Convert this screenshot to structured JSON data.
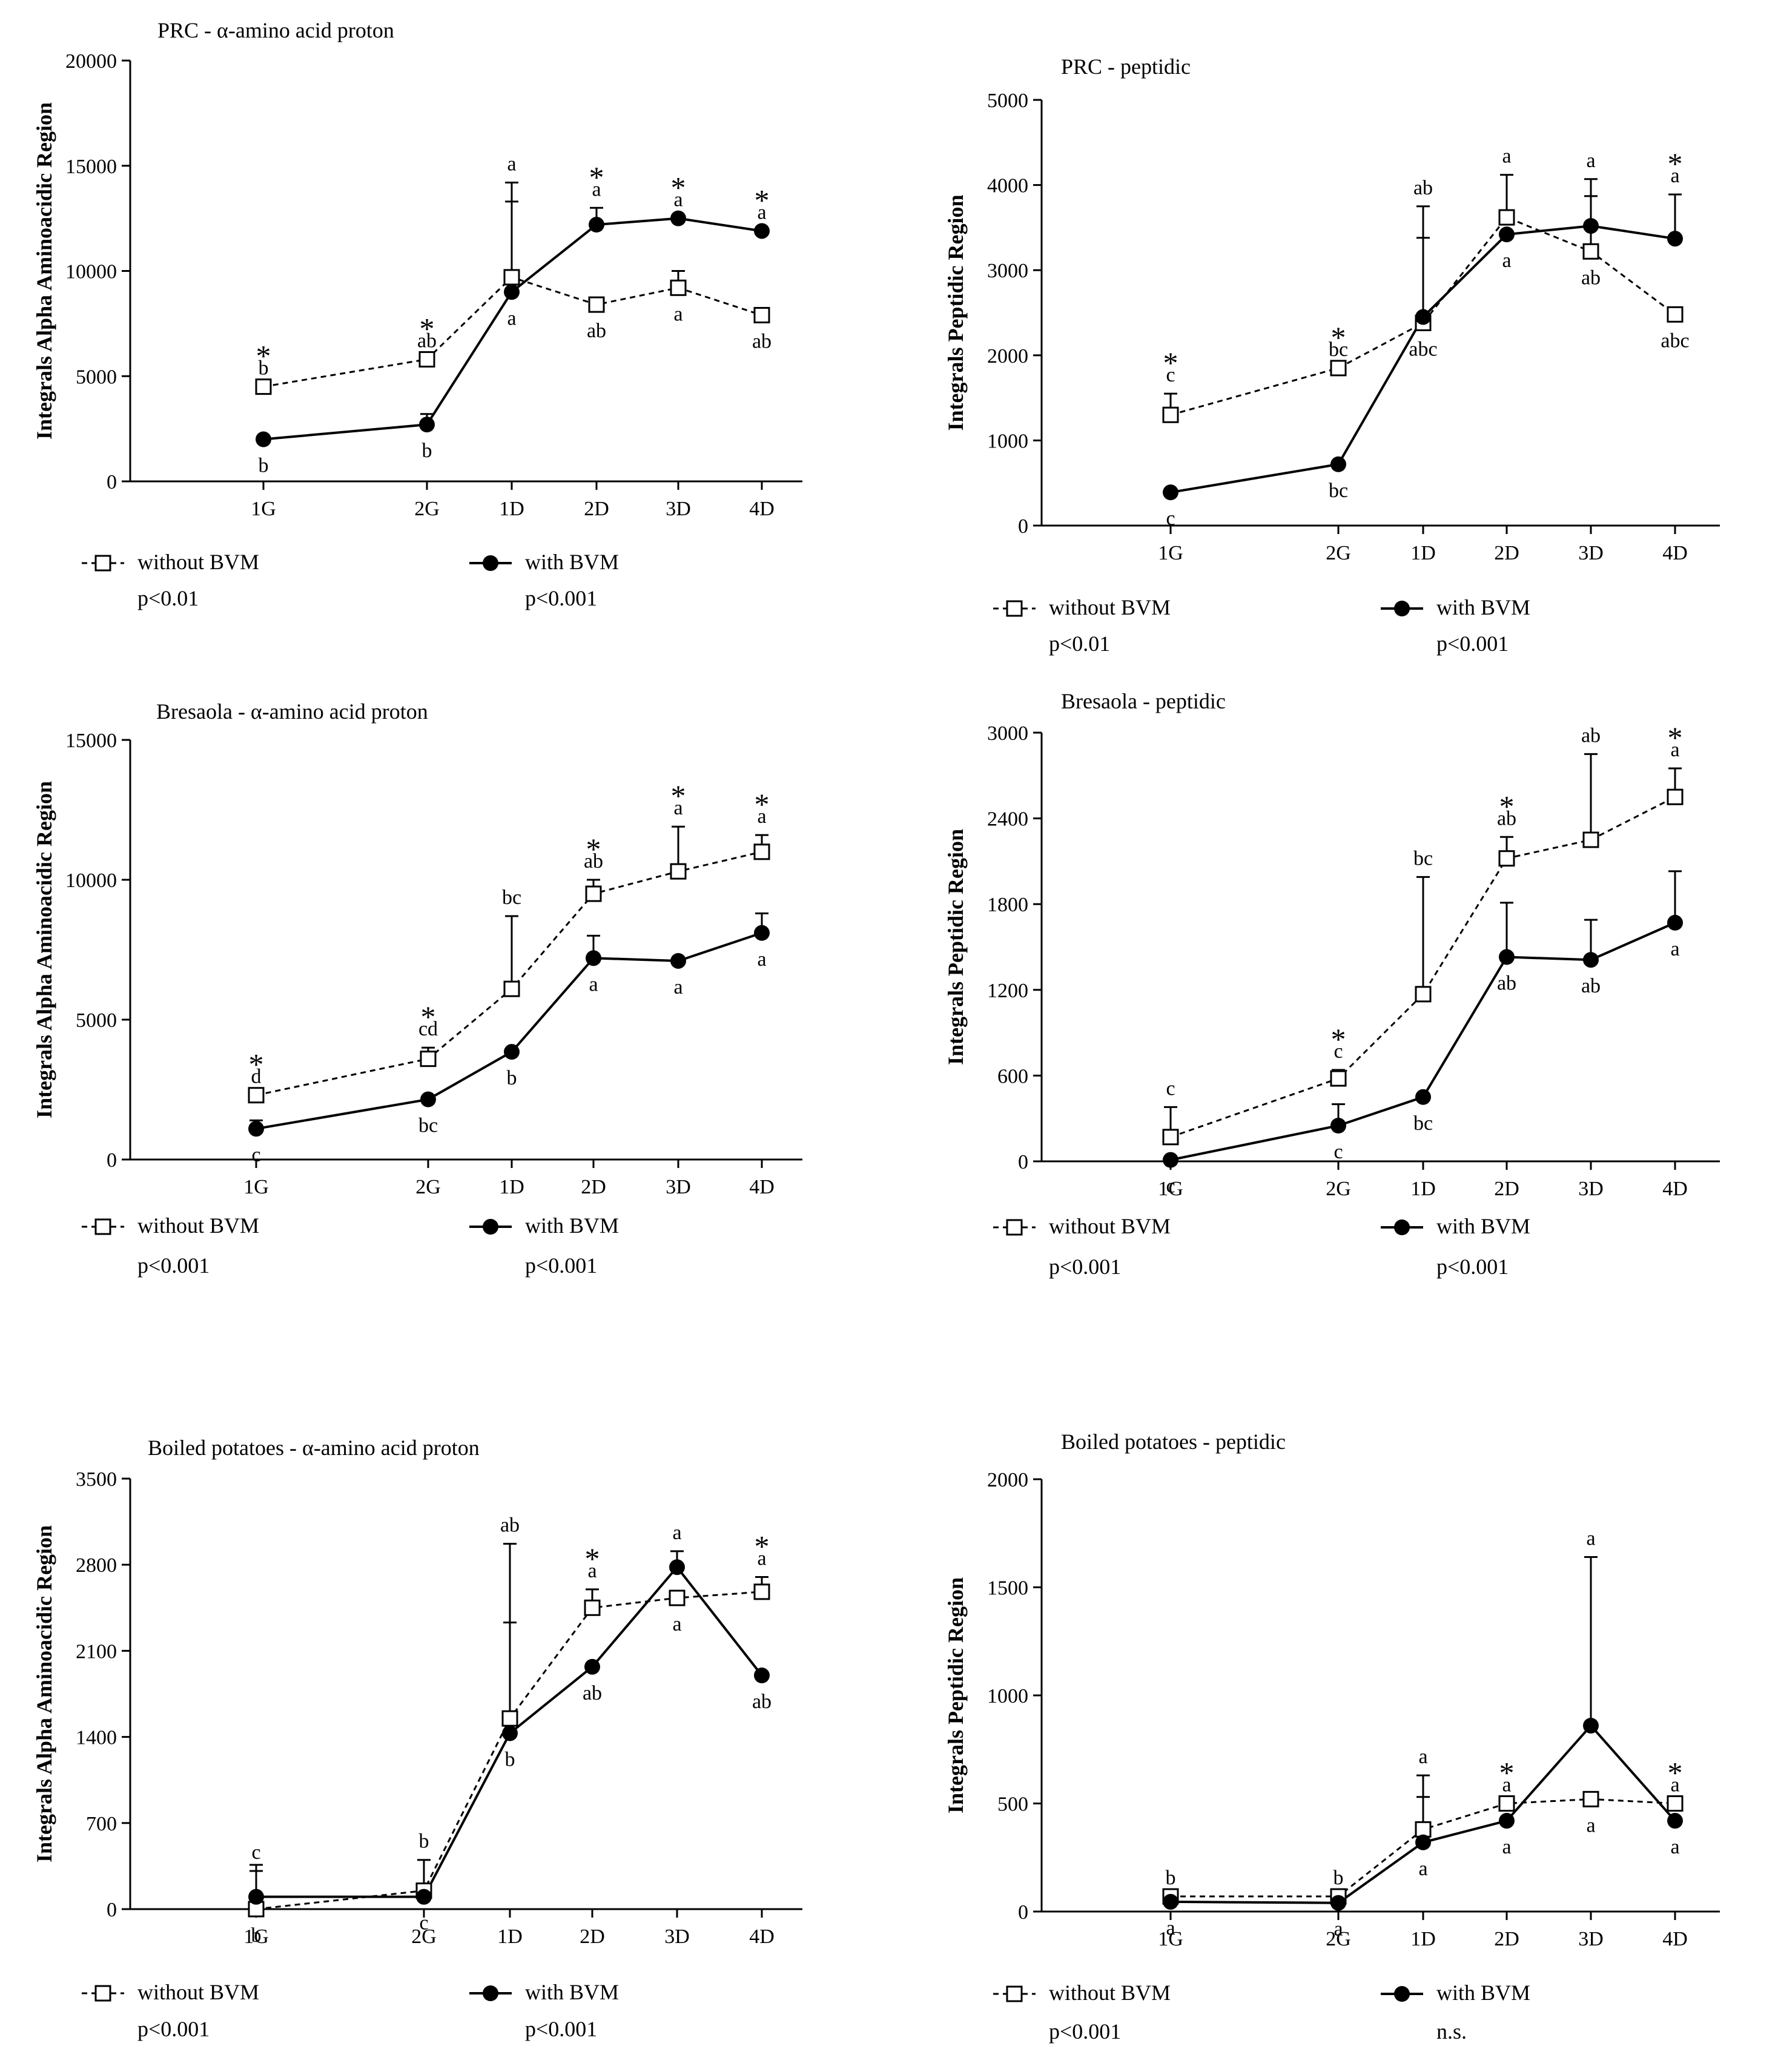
{
  "chart_data": [
    {
      "type": "line",
      "title": "PRC - α-amino acid proton",
      "ylabel": "Integrals Alpha Aminoacidic Region",
      "categories": [
        "1G",
        "2G",
        "1D",
        "2D",
        "3D",
        "4D"
      ],
      "ylim": [
        0,
        20000
      ],
      "yticks": [
        0,
        5000,
        10000,
        15000,
        20000
      ],
      "series": [
        {
          "name": "without BVM",
          "p_value": "p<0.01",
          "values": [
            4500,
            5800,
            9700,
            8400,
            9200,
            7900
          ],
          "errors": [
            null,
            null,
            4500,
            null,
            800,
            null
          ],
          "letters": [
            "b",
            "ab",
            "a",
            "ab",
            "a",
            "ab"
          ]
        },
        {
          "name": "with BVM",
          "p_value": "p<0.001",
          "values": [
            2000,
            2700,
            9000,
            12200,
            12500,
            11900
          ],
          "errors": [
            null,
            500,
            4300,
            800,
            null,
            null
          ],
          "letters": [
            "b",
            "b",
            "a",
            "a",
            "a",
            "a"
          ]
        }
      ],
      "stars": [
        true,
        true,
        false,
        true,
        true,
        true
      ]
    },
    {
      "type": "line",
      "title": "PRC - peptidic",
      "ylabel": "Integrals Peptidic Region",
      "categories": [
        "1G",
        "2G",
        "1D",
        "2D",
        "3D",
        "4D"
      ],
      "ylim": [
        0,
        5000
      ],
      "yticks": [
        0,
        1000,
        2000,
        3000,
        4000,
        5000
      ],
      "series": [
        {
          "name": "without BVM",
          "p_value": "p<0.01",
          "values": [
            1300,
            1850,
            2380,
            3620,
            3220,
            2480
          ],
          "errors": [
            250,
            null,
            1000,
            500,
            650,
            null
          ],
          "letters": [
            "c",
            "bc",
            "abc",
            "a",
            "ab",
            "abc"
          ]
        },
        {
          "name": "with BVM",
          "p_value": "p<0.001",
          "values": [
            390,
            720,
            2450,
            3420,
            3520,
            3370
          ],
          "errors": [
            null,
            null,
            1300,
            null,
            550,
            520
          ],
          "letters": [
            "c",
            "bc",
            "ab",
            "a",
            "a",
            "a"
          ]
        }
      ],
      "stars": [
        true,
        true,
        false,
        false,
        false,
        true
      ]
    },
    {
      "type": "line",
      "title": "Bresaola - α-amino acid proton",
      "ylabel": "Integrals Alpha Aminoacidic Region",
      "categories": [
        "1G",
        "2G",
        "1D",
        "2D",
        "3D",
        "4D"
      ],
      "ylim": [
        0,
        15000
      ],
      "yticks": [
        0,
        5000,
        10000,
        15000
      ],
      "series": [
        {
          "name": "without BVM",
          "p_value": "p<0.001",
          "values": [
            2300,
            3600,
            6100,
            9500,
            10300,
            11000
          ],
          "errors": [
            null,
            400,
            2600,
            500,
            1600,
            600
          ],
          "letters": [
            "d",
            "cd",
            "bc",
            "ab",
            "a",
            "a"
          ]
        },
        {
          "name": "with BVM",
          "p_value": "p<0.001",
          "values": [
            1100,
            2150,
            3850,
            7200,
            7100,
            8100
          ],
          "errors": [
            300,
            null,
            null,
            800,
            null,
            700
          ],
          "letters": [
            "c",
            "bc",
            "b",
            "a",
            "a",
            "a"
          ]
        }
      ],
      "stars": [
        true,
        true,
        false,
        true,
        true,
        true
      ]
    },
    {
      "type": "line",
      "title": "Bresaola - peptidic",
      "ylabel": "Integrals Peptidic Region",
      "categories": [
        "1G",
        "2G",
        "1D",
        "2D",
        "3D",
        "4D"
      ],
      "ylim": [
        0,
        3000
      ],
      "yticks": [
        0,
        600,
        1200,
        1800,
        2400,
        3000
      ],
      "series": [
        {
          "name": "without BVM",
          "p_value": "p<0.001",
          "values": [
            170,
            580,
            1170,
            2120,
            2250,
            2550
          ],
          "errors": [
            210,
            60,
            820,
            150,
            600,
            200
          ],
          "letters": [
            "c",
            "c",
            "bc",
            "ab",
            "ab",
            "a"
          ]
        },
        {
          "name": "with BVM",
          "p_value": "p<0.001",
          "values": [
            10,
            250,
            450,
            1430,
            1410,
            1670
          ],
          "errors": [
            null,
            150,
            null,
            380,
            280,
            360
          ],
          "letters": [
            "c",
            "c",
            "bc",
            "ab",
            "ab",
            "a"
          ]
        }
      ],
      "stars": [
        false,
        true,
        false,
        true,
        false,
        true
      ]
    },
    {
      "type": "line",
      "title": "Boiled potatoes - α-amino acid proton",
      "ylabel": "Integrals Alpha Aminoacidic Region",
      "categories": [
        "1G",
        "2G",
        "1D",
        "2D",
        "3D",
        "4D"
      ],
      "ylim": [
        0,
        3500
      ],
      "yticks": [
        0,
        700,
        1400,
        2100,
        2800,
        3500
      ],
      "series": [
        {
          "name": "without BVM",
          "p_value": "p<0.001",
          "values": [
            0,
            150,
            1550,
            2450,
            2530,
            2580
          ],
          "errors": [
            360,
            250,
            1420,
            150,
            null,
            120
          ],
          "letters": [
            "b",
            "b",
            "ab",
            "a",
            "a",
            "a"
          ]
        },
        {
          "name": "with BVM",
          "p_value": "p<0.001",
          "values": [
            100,
            100,
            1430,
            1970,
            2780,
            1900
          ],
          "errors": [
            210,
            null,
            900,
            null,
            130,
            null
          ],
          "letters": [
            "c",
            "c",
            "b",
            "ab",
            "a",
            "ab"
          ]
        }
      ],
      "stars": [
        false,
        false,
        false,
        true,
        false,
        true
      ]
    },
    {
      "type": "line",
      "title": "Boiled potatoes - peptidic",
      "ylabel": "Integrals Peptidic Region",
      "categories": [
        "1G",
        "2G",
        "1D",
        "2D",
        "3D",
        "4D"
      ],
      "ylim": [
        0,
        2000
      ],
      "yticks": [
        0,
        500,
        1000,
        1500,
        2000
      ],
      "series": [
        {
          "name": "without BVM",
          "p_value": "p<0.001",
          "values": [
            70,
            70,
            380,
            500,
            520,
            500
          ],
          "errors": [
            null,
            null,
            250,
            null,
            null,
            null
          ],
          "letters": [
            "b",
            "b",
            "a",
            "a",
            "a",
            "a"
          ]
        },
        {
          "name": "with BVM",
          "p_value": "n.s.",
          "values": [
            45,
            40,
            320,
            420,
            860,
            420
          ],
          "errors": [
            null,
            null,
            210,
            null,
            780,
            null
          ],
          "letters": [
            "a",
            "a",
            "a",
            "a",
            "a",
            "a"
          ]
        }
      ],
      "stars": [
        false,
        false,
        false,
        true,
        false,
        true
      ]
    }
  ]
}
